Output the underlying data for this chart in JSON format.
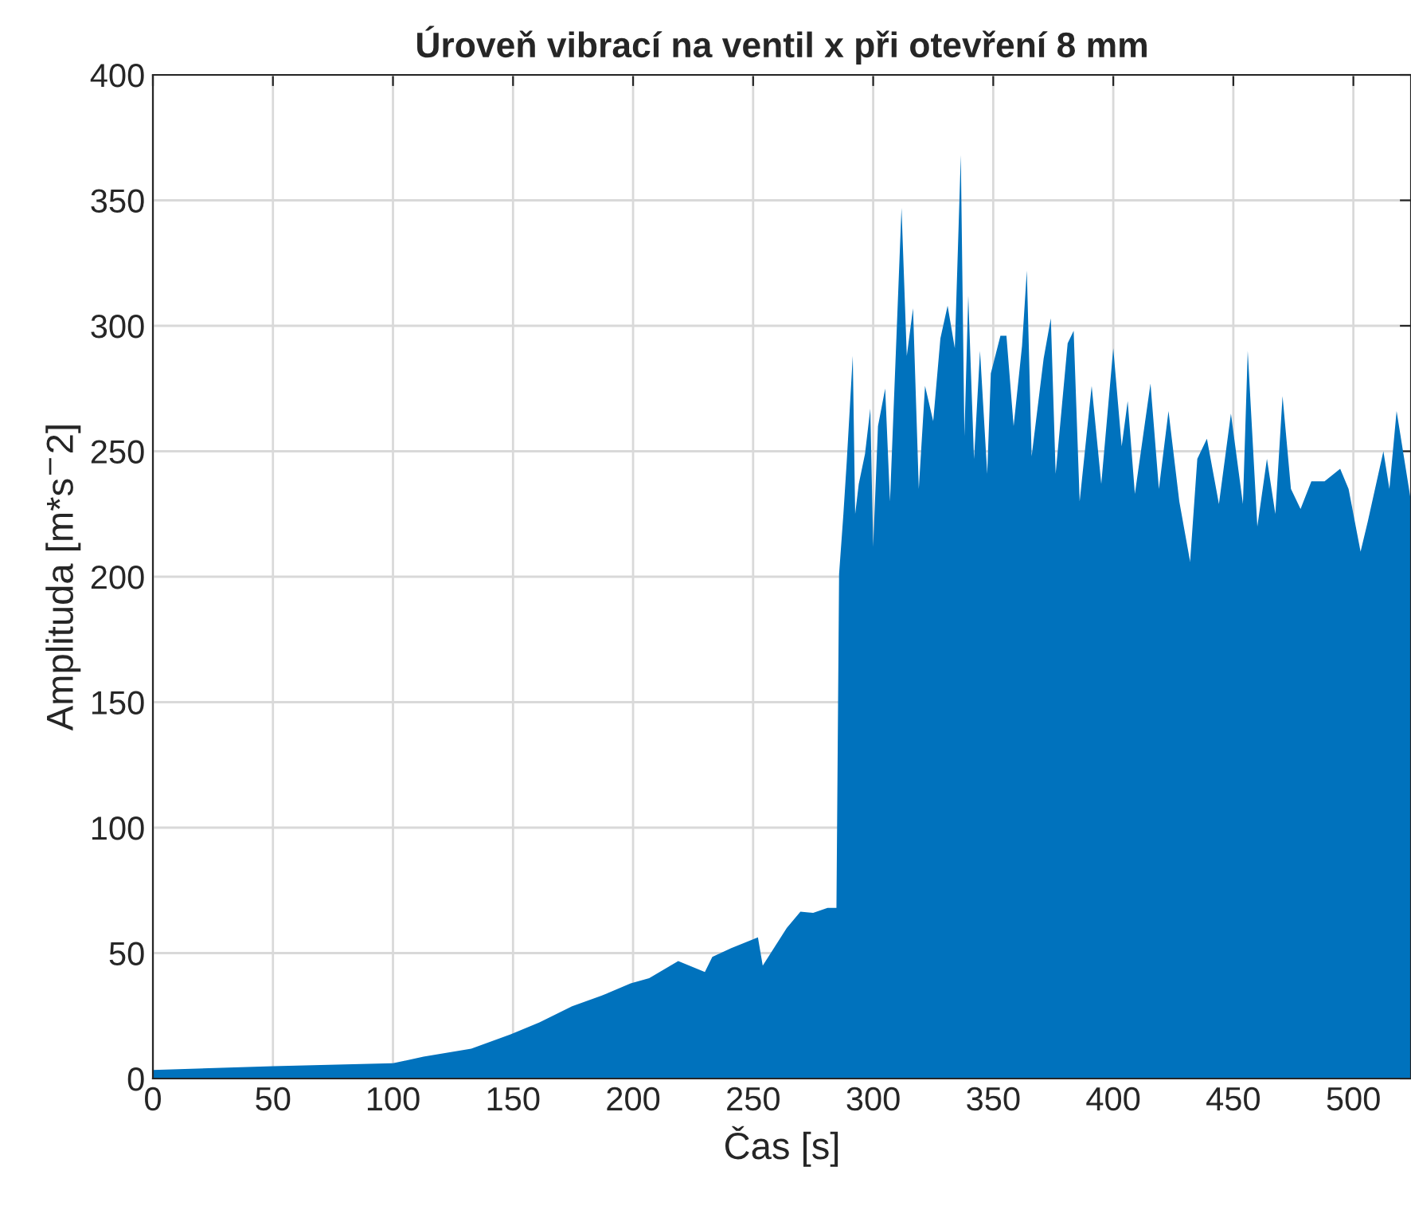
{
  "chart_data": {
    "type": "area",
    "title": "Úroveň vibrací na ventil x při otevření 8 mm",
    "xlabel": "Čas [s]",
    "ylabel": "Amplituda [m*s$^{−}$2]",
    "x": [
      0,
      50,
      100,
      112.7,
      132.6,
      149,
      161,
      174.6,
      186.8,
      199,
      206.7,
      218.8,
      229.9,
      233,
      240.9,
      252,
      254,
      264,
      269.7,
      275,
      281,
      284.7,
      285.8,
      287.6,
      289,
      291.5,
      292.5,
      294,
      296.6,
      298.8,
      300,
      302,
      305,
      307,
      311.8,
      314,
      316.6,
      319,
      321.6,
      325,
      328,
      331,
      334,
      336.5,
      338,
      339.6,
      342,
      344.5,
      347.5,
      349,
      353,
      355.5,
      358.5,
      362,
      364,
      366,
      371,
      374,
      376,
      381,
      383.5,
      386,
      391,
      395,
      400,
      403.5,
      406,
      409,
      415.5,
      419,
      423,
      427.5,
      432,
      435,
      439,
      444,
      449,
      454,
      456,
      460,
      464,
      467.5,
      470.5,
      474,
      478,
      482.5,
      488,
      494.5,
      498,
      503,
      506,
      512.5,
      515,
      518,
      524
    ],
    "series": [
      {
        "color": "#0072bd",
        "values": [
          3.4,
          4.9,
          6.1,
          8.7,
          11.9,
          17.6,
          22.4,
          28.8,
          33,
          37.9,
          40,
          46.8,
          42.5,
          48.5,
          52,
          56.3,
          45,
          60,
          66.5,
          66,
          68,
          68,
          201,
          225,
          246,
          288,
          225,
          237,
          249,
          267,
          212,
          260,
          275,
          230,
          347,
          288,
          307,
          235,
          276,
          262,
          295,
          308,
          291,
          368,
          256,
          312,
          247,
          290,
          241,
          281,
          296,
          296,
          260,
          292,
          322,
          248,
          287,
          303,
          241,
          293,
          298,
          230,
          276,
          237,
          291,
          252,
          270,
          233,
          277,
          235,
          266,
          230,
          206,
          247,
          255,
          229,
          265,
          229,
          290,
          220,
          247,
          225,
          272,
          235,
          227,
          238,
          238,
          243,
          235,
          210,
          222,
          250,
          235,
          266,
          230
        ]
      }
    ],
    "xlim": [
      0,
      524
    ],
    "xticks": [
      0,
      50,
      100,
      150,
      200,
      250,
      300,
      350,
      400,
      450,
      500
    ],
    "ylim": [
      0,
      400
    ],
    "yticks": [
      0,
      50,
      100,
      150,
      200,
      250,
      300,
      350,
      400
    ],
    "grid": true
  }
}
